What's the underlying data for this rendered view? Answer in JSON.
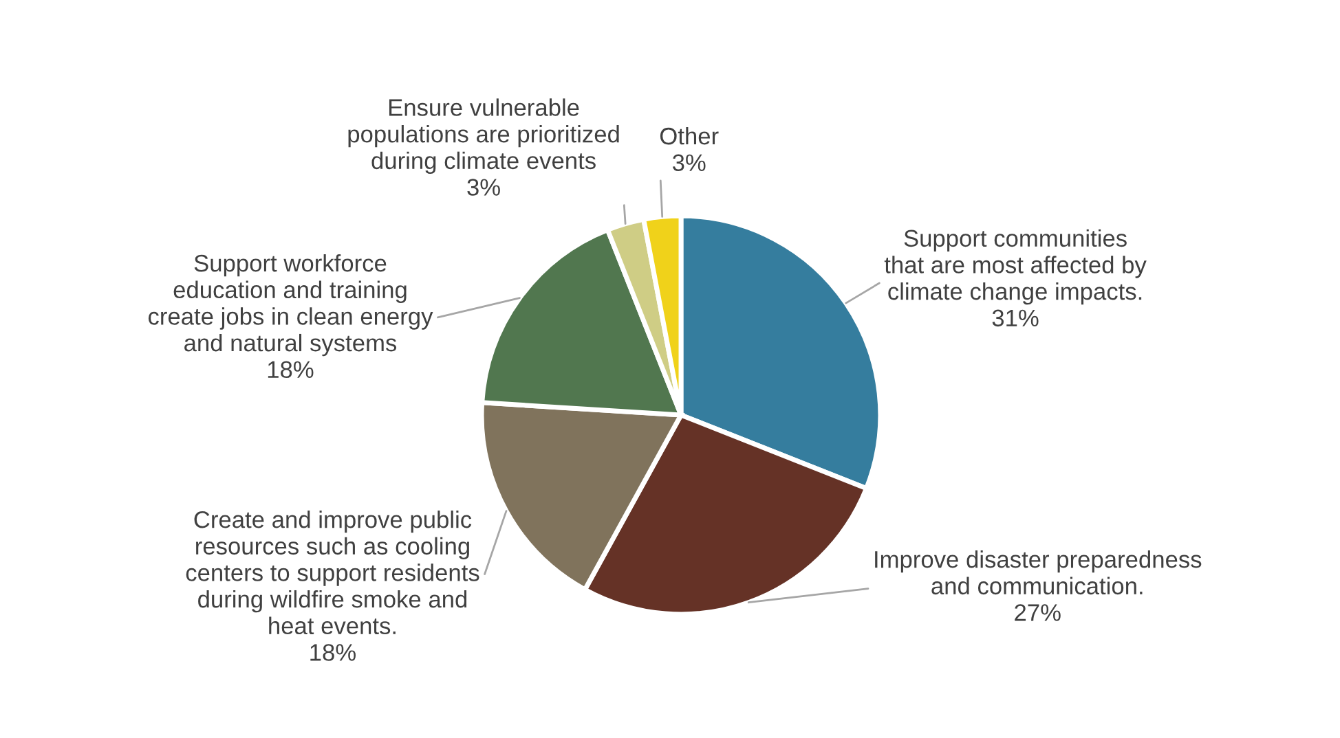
{
  "chart_data": {
    "type": "pie",
    "categories": [
      "Support communities\nthat are most affected by\nclimate change impacts.",
      "Improve disaster preparedness\nand communication.",
      "Create and improve public\nresources such as cooling\ncenters to support residents\nduring wildfire smoke and\nheat events.",
      "Support workforce\neducation and training\ncreate jobs in clean energy\nand natural systems",
      "Ensure vulnerable\npopulations are prioritized\nduring climate events",
      "Other"
    ],
    "values": [
      31,
      27,
      18,
      18,
      3,
      3
    ],
    "value_labels": [
      "31%",
      "27%",
      "18%",
      "18%",
      "3%",
      "3%"
    ],
    "colors": [
      "#357d9e",
      "#653226",
      "#80735c",
      "#51774f",
      "#cfcd85",
      "#f0d21a"
    ]
  }
}
